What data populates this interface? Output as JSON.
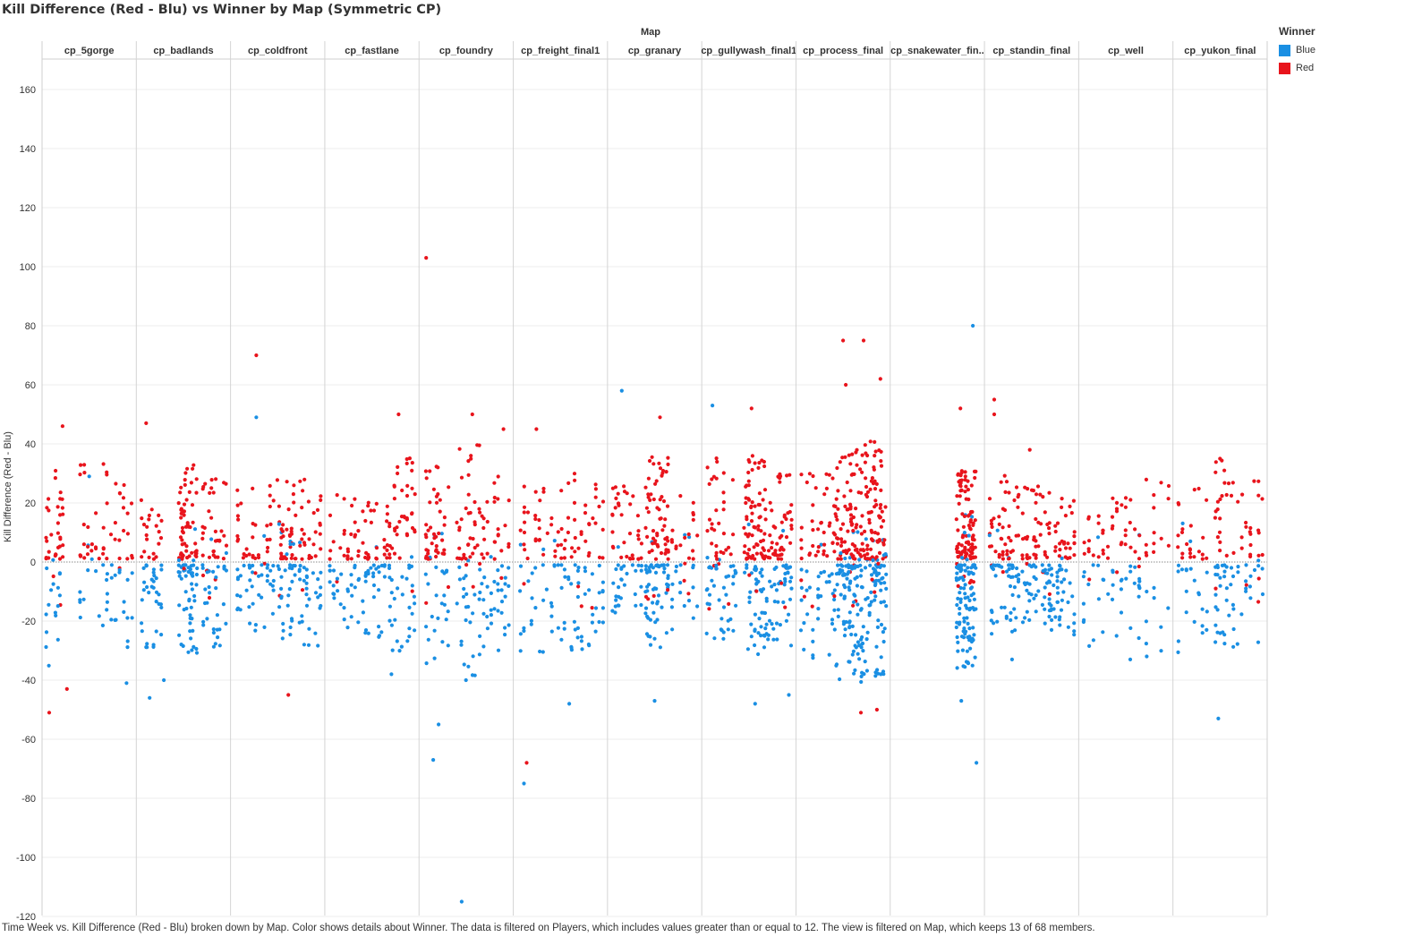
{
  "header": {
    "title": "Kill Difference (Red - Blu) vs Winner by Map (Symmetric CP)",
    "column_header": "Map"
  },
  "footer": {
    "caption": "Time Week vs. Kill Difference (Red - Blu) broken down by Map.  Color shows details about Winner. The data is filtered on Players, which includes values greater than or equal to 12. The view is filtered on Map, which keeps 13 of 68 members."
  },
  "legend": {
    "title": "Winner",
    "items": [
      {
        "label": "Blue",
        "color": "#1a8fe3"
      },
      {
        "label": "Red",
        "color": "#e8141c"
      }
    ]
  },
  "chart_data": {
    "type": "scatter",
    "title": "Kill Difference (Red - Blu) vs Winner by Map (Symmetric CP)",
    "ylabel": "Kill Difference (Red - Blu)",
    "facet_label": "Map",
    "ylim": [
      -120,
      170
    ],
    "yticks": [
      160,
      140,
      120,
      100,
      80,
      60,
      40,
      20,
      0,
      -20,
      -40,
      -60,
      -80,
      -100,
      -120
    ],
    "reference_line": 0,
    "grid": true,
    "legend_position": "top-right",
    "maps": [
      "cp_5gorge",
      "cp_badlands",
      "cp_coldfront",
      "cp_fastlane",
      "cp_foundry",
      "cp_freight_final1",
      "cp_granary",
      "cp_gullywash_final1",
      "cp_process_final",
      "cp_snakewater_fin..",
      "cp_standin_final",
      "cp_well",
      "cp_yukon_final"
    ],
    "series_colors": {
      "Blue": "#1a8fe3",
      "Red": "#e8141c"
    },
    "observed_extremes": [
      {
        "map": "cp_5gorge",
        "red_max": 46,
        "blue_min": -41
      },
      {
        "map": "cp_badlands",
        "red_max": 47,
        "blue_min": -46
      },
      {
        "map": "cp_coldfront",
        "red_max": 70,
        "blue_min": -32
      },
      {
        "map": "cp_fastlane",
        "red_max": 50,
        "blue_min": -38
      },
      {
        "map": "cp_foundry",
        "red_max": 103,
        "blue_min": -115
      },
      {
        "map": "cp_freight_final1",
        "red_max": 45,
        "blue_min": -75
      },
      {
        "map": "cp_granary",
        "red_max": 49,
        "blue_min": -47
      },
      {
        "map": "cp_gullywash_final1",
        "red_max": 52,
        "blue_min": -48
      },
      {
        "map": "cp_process_final",
        "red_max": 75,
        "blue_min": -48
      },
      {
        "map": "cp_snakewater_fin..",
        "red_max": 52,
        "blue_min": -68
      },
      {
        "map": "cp_standin_final",
        "red_max": 55,
        "blue_min": -33
      },
      {
        "map": "cp_well",
        "red_max": 30,
        "blue_min": -33
      },
      {
        "map": "cp_yukon_final",
        "red_max": 35,
        "blue_min": -53
      }
    ],
    "point_groups": [
      {
        "map": "cp_5gorge",
        "start": 0.02,
        "end": 0.2,
        "count": 50,
        "red": [
          0,
          30
        ],
        "blue": [
          -38,
          0
        ]
      },
      {
        "map": "cp_5gorge",
        "start": 0.4,
        "end": 0.7,
        "count": 45,
        "red": [
          0,
          35
        ],
        "blue": [
          -30,
          0
        ]
      },
      {
        "map": "cp_5gorge",
        "start": 0.75,
        "end": 0.98,
        "count": 35,
        "red": [
          0,
          28
        ],
        "blue": [
          -35,
          0
        ]
      },
      {
        "map": "cp_badlands",
        "start": 0.03,
        "end": 0.25,
        "count": 55,
        "red": [
          0,
          20
        ],
        "blue": [
          -28,
          0
        ]
      },
      {
        "map": "cp_badlands",
        "start": 0.45,
        "end": 0.65,
        "count": 110,
        "red": [
          0,
          32
        ],
        "blue": [
          -32,
          0
        ]
      },
      {
        "map": "cp_badlands",
        "start": 0.72,
        "end": 0.98,
        "count": 70,
        "red": [
          0,
          28
        ],
        "blue": [
          -30,
          0
        ]
      },
      {
        "map": "cp_coldfront",
        "start": 0.05,
        "end": 0.45,
        "count": 75,
        "red": [
          0,
          28
        ],
        "blue": [
          -25,
          0
        ]
      },
      {
        "map": "cp_coldfront",
        "start": 0.5,
        "end": 0.7,
        "count": 65,
        "red": [
          0,
          28
        ],
        "blue": [
          -25,
          0
        ]
      },
      {
        "map": "cp_coldfront",
        "start": 0.75,
        "end": 0.98,
        "count": 60,
        "red": [
          0,
          30
        ],
        "blue": [
          -28,
          0
        ]
      },
      {
        "map": "cp_fastlane",
        "start": 0.03,
        "end": 0.35,
        "count": 55,
        "red": [
          0,
          22
        ],
        "blue": [
          -22,
          0
        ]
      },
      {
        "map": "cp_fastlane",
        "start": 0.4,
        "end": 0.7,
        "count": 65,
        "red": [
          0,
          20
        ],
        "blue": [
          -25,
          0
        ]
      },
      {
        "map": "cp_fastlane",
        "start": 0.7,
        "end": 0.98,
        "count": 65,
        "red": [
          0,
          35
        ],
        "blue": [
          -30,
          0
        ]
      },
      {
        "map": "cp_foundry",
        "start": 0.05,
        "end": 0.3,
        "count": 70,
        "red": [
          0,
          35
        ],
        "blue": [
          -35,
          0
        ]
      },
      {
        "map": "cp_foundry",
        "start": 0.4,
        "end": 0.7,
        "count": 75,
        "red": [
          0,
          40
        ],
        "blue": [
          -40,
          0
        ]
      },
      {
        "map": "cp_foundry",
        "start": 0.7,
        "end": 0.98,
        "count": 50,
        "red": [
          0,
          30
        ],
        "blue": [
          -30,
          0
        ]
      },
      {
        "map": "cp_freight_final1",
        "start": 0.05,
        "end": 0.35,
        "count": 45,
        "red": [
          0,
          25
        ],
        "blue": [
          -30,
          0
        ]
      },
      {
        "map": "cp_freight_final1",
        "start": 0.4,
        "end": 0.7,
        "count": 55,
        "red": [
          0,
          30
        ],
        "blue": [
          -32,
          0
        ]
      },
      {
        "map": "cp_freight_final1",
        "start": 0.7,
        "end": 0.98,
        "count": 45,
        "red": [
          0,
          30
        ],
        "blue": [
          -30,
          0
        ]
      },
      {
        "map": "cp_granary",
        "start": 0.03,
        "end": 0.35,
        "count": 65,
        "red": [
          0,
          25
        ],
        "blue": [
          -20,
          0
        ]
      },
      {
        "map": "cp_granary",
        "start": 0.4,
        "end": 0.65,
        "count": 110,
        "red": [
          0,
          35
        ],
        "blue": [
          -28,
          0
        ]
      },
      {
        "map": "cp_granary",
        "start": 0.65,
        "end": 0.98,
        "count": 45,
        "red": [
          0,
          22
        ],
        "blue": [
          -22,
          0
        ]
      },
      {
        "map": "cp_gullywash_final1",
        "start": 0.03,
        "end": 0.35,
        "count": 75,
        "red": [
          0,
          35
        ],
        "blue": [
          -28,
          0
        ]
      },
      {
        "map": "cp_gullywash_final1",
        "start": 0.45,
        "end": 0.7,
        "count": 120,
        "red": [
          0,
          35
        ],
        "blue": [
          -38,
          0
        ]
      },
      {
        "map": "cp_gullywash_final1",
        "start": 0.72,
        "end": 0.98,
        "count": 90,
        "red": [
          0,
          30
        ],
        "blue": [
          -30,
          0
        ]
      },
      {
        "map": "cp_process_final",
        "start": 0.03,
        "end": 0.38,
        "count": 70,
        "red": [
          0,
          30
        ],
        "blue": [
          -32,
          0
        ]
      },
      {
        "map": "cp_process_final",
        "start": 0.4,
        "end": 0.7,
        "count": 170,
        "red": [
          0,
          38
        ],
        "blue": [
          -40,
          0
        ]
      },
      {
        "map": "cp_process_final",
        "start": 0.7,
        "end": 0.98,
        "count": 170,
        "red": [
          0,
          40
        ],
        "blue": [
          -42,
          0
        ]
      },
      {
        "map": "cp_snakewater_fin..",
        "start": 0.72,
        "end": 0.93,
        "count": 200,
        "red": [
          0,
          30
        ],
        "blue": [
          -35,
          0
        ]
      },
      {
        "map": "cp_standin_final",
        "start": 0.03,
        "end": 0.35,
        "count": 95,
        "red": [
          0,
          30
        ],
        "blue": [
          -25,
          0
        ]
      },
      {
        "map": "cp_standin_final",
        "start": 0.4,
        "end": 0.7,
        "count": 80,
        "red": [
          0,
          25
        ],
        "blue": [
          -22,
          0
        ]
      },
      {
        "map": "cp_standin_final",
        "start": 0.7,
        "end": 0.98,
        "count": 75,
        "red": [
          0,
          22
        ],
        "blue": [
          -25,
          0
        ]
      },
      {
        "map": "cp_well",
        "start": 0.03,
        "end": 0.3,
        "count": 35,
        "red": [
          0,
          20
        ],
        "blue": [
          -28,
          0
        ]
      },
      {
        "map": "cp_well",
        "start": 0.35,
        "end": 0.65,
        "count": 40,
        "red": [
          0,
          22
        ],
        "blue": [
          -25,
          0
        ]
      },
      {
        "map": "cp_well",
        "start": 0.65,
        "end": 0.98,
        "count": 30,
        "red": [
          0,
          28
        ],
        "blue": [
          -32,
          0
        ]
      },
      {
        "map": "cp_yukon_final",
        "start": 0.03,
        "end": 0.35,
        "count": 45,
        "red": [
          0,
          25
        ],
        "blue": [
          -30,
          0
        ]
      },
      {
        "map": "cp_yukon_final",
        "start": 0.45,
        "end": 0.65,
        "count": 55,
        "red": [
          0,
          35
        ],
        "blue": [
          -28,
          0
        ]
      },
      {
        "map": "cp_yukon_final",
        "start": 0.7,
        "end": 0.98,
        "count": 40,
        "red": [
          0,
          28
        ],
        "blue": [
          -30,
          0
        ]
      }
    ],
    "outliers": [
      {
        "map": "cp_5gorge",
        "t": 0.2,
        "y": 46,
        "winner": "Red"
      },
      {
        "map": "cp_5gorge",
        "t": 0.05,
        "y": -51,
        "winner": "Red"
      },
      {
        "map": "cp_5gorge",
        "t": 0.25,
        "y": -43,
        "winner": "Red"
      },
      {
        "map": "cp_5gorge",
        "t": 0.5,
        "y": 29,
        "winner": "Blue"
      },
      {
        "map": "cp_5gorge",
        "t": 0.92,
        "y": -41,
        "winner": "Blue"
      },
      {
        "map": "cp_badlands",
        "t": 0.08,
        "y": 47,
        "winner": "Red"
      },
      {
        "map": "cp_badlands",
        "t": 0.12,
        "y": -46,
        "winner": "Blue"
      },
      {
        "map": "cp_badlands",
        "t": 0.28,
        "y": -40,
        "winner": "Blue"
      },
      {
        "map": "cp_coldfront",
        "t": 0.26,
        "y": 49,
        "winner": "Blue"
      },
      {
        "map": "cp_coldfront",
        "t": 0.26,
        "y": 70,
        "winner": "Red"
      },
      {
        "map": "cp_coldfront",
        "t": 0.62,
        "y": -45,
        "winner": "Red"
      },
      {
        "map": "cp_fastlane",
        "t": 0.8,
        "y": 50,
        "winner": "Red"
      },
      {
        "map": "cp_fastlane",
        "t": 0.72,
        "y": -38,
        "winner": "Blue"
      },
      {
        "map": "cp_foundry",
        "t": 0.05,
        "y": 103,
        "winner": "Red"
      },
      {
        "map": "cp_foundry",
        "t": 0.45,
        "y": -115,
        "winner": "Blue"
      },
      {
        "map": "cp_foundry",
        "t": 0.13,
        "y": -67,
        "winner": "Blue"
      },
      {
        "map": "cp_foundry",
        "t": 0.19,
        "y": -55,
        "winner": "Blue"
      },
      {
        "map": "cp_foundry",
        "t": 0.57,
        "y": 50,
        "winner": "Red"
      },
      {
        "map": "cp_foundry",
        "t": 0.92,
        "y": 45,
        "winner": "Red"
      },
      {
        "map": "cp_freight_final1",
        "t": 0.12,
        "y": -68,
        "winner": "Red"
      },
      {
        "map": "cp_freight_final1",
        "t": 0.09,
        "y": -75,
        "winner": "Blue"
      },
      {
        "map": "cp_freight_final1",
        "t": 0.23,
        "y": 45,
        "winner": "Red"
      },
      {
        "map": "cp_freight_final1",
        "t": 0.6,
        "y": -48,
        "winner": "Blue"
      },
      {
        "map": "cp_granary",
        "t": 0.13,
        "y": 58,
        "winner": "Blue"
      },
      {
        "map": "cp_granary",
        "t": 0.56,
        "y": 49,
        "winner": "Red"
      },
      {
        "map": "cp_granary",
        "t": 0.5,
        "y": -47,
        "winner": "Blue"
      },
      {
        "map": "cp_gullywash_final1",
        "t": 0.09,
        "y": 53,
        "winner": "Blue"
      },
      {
        "map": "cp_gullywash_final1",
        "t": 0.53,
        "y": 52,
        "winner": "Red"
      },
      {
        "map": "cp_gullywash_final1",
        "t": 0.57,
        "y": -48,
        "winner": "Blue"
      },
      {
        "map": "cp_gullywash_final1",
        "t": 0.95,
        "y": -45,
        "winner": "Blue"
      },
      {
        "map": "cp_process_final",
        "t": 0.5,
        "y": 75,
        "winner": "Red"
      },
      {
        "map": "cp_process_final",
        "t": 0.73,
        "y": 75,
        "winner": "Red"
      },
      {
        "map": "cp_process_final",
        "t": 0.92,
        "y": 62,
        "winner": "Red"
      },
      {
        "map": "cp_process_final",
        "t": 0.53,
        "y": 60,
        "winner": "Red"
      },
      {
        "map": "cp_process_final",
        "t": 0.7,
        "y": -51,
        "winner": "Red"
      },
      {
        "map": "cp_process_final",
        "t": 0.88,
        "y": -50,
        "winner": "Red"
      },
      {
        "map": "cp_snakewater_fin..",
        "t": 0.9,
        "y": 80,
        "winner": "Blue"
      },
      {
        "map": "cp_snakewater_fin..",
        "t": 0.94,
        "y": -68,
        "winner": "Blue"
      },
      {
        "map": "cp_snakewater_fin..",
        "t": 0.76,
        "y": 52,
        "winner": "Red"
      },
      {
        "map": "cp_snakewater_fin..",
        "t": 0.77,
        "y": -47,
        "winner": "Blue"
      },
      {
        "map": "cp_standin_final",
        "t": 0.08,
        "y": 55,
        "winner": "Red"
      },
      {
        "map": "cp_standin_final",
        "t": 0.08,
        "y": 50,
        "winner": "Red"
      },
      {
        "map": "cp_standin_final",
        "t": 0.28,
        "y": -33,
        "winner": "Blue"
      },
      {
        "map": "cp_standin_final",
        "t": 0.48,
        "y": 38,
        "winner": "Red"
      },
      {
        "map": "cp_well",
        "t": 0.55,
        "y": -33,
        "winner": "Blue"
      },
      {
        "map": "cp_yukon_final",
        "t": 0.48,
        "y": -53,
        "winner": "Blue"
      },
      {
        "map": "cp_yukon_final",
        "t": 0.5,
        "y": 35,
        "winner": "Red"
      }
    ]
  }
}
